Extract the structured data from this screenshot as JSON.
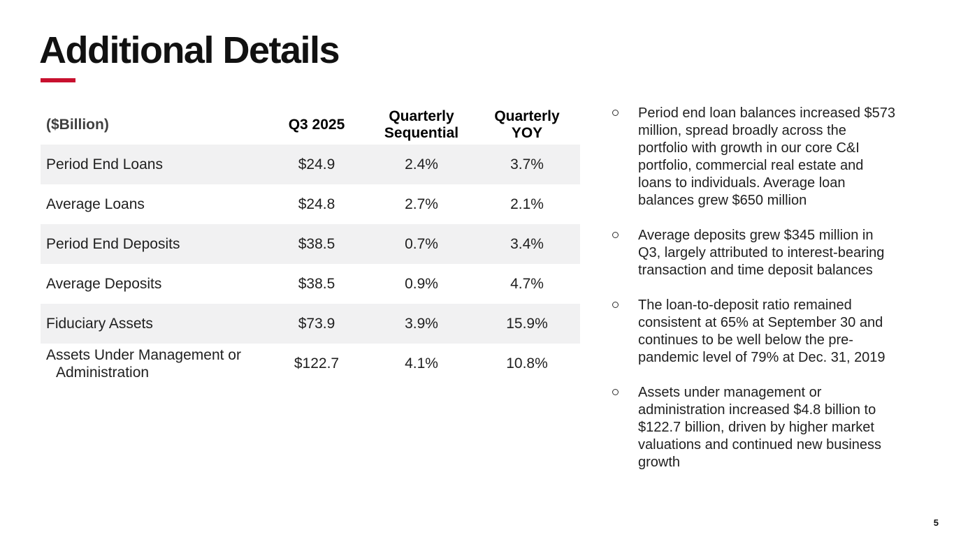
{
  "slide": {
    "title": "Additional Details",
    "page_number": "5"
  },
  "colors": {
    "accent_red": "#C8102E",
    "row_stripe": "#F1F1F2",
    "body_text": "#1F1F1F"
  },
  "table": {
    "unit_header": "($Billion)",
    "column_headers": [
      "Q3 2025",
      "Quarterly Sequential",
      "Quarterly YOY"
    ],
    "rows": [
      {
        "label": "Period End Loans",
        "q3_2025": "$24.9",
        "quarterly_sequential": "2.4%",
        "quarterly_yoy": "3.7%"
      },
      {
        "label": "Average Loans",
        "q3_2025": "$24.8",
        "quarterly_sequential": "2.7%",
        "quarterly_yoy": "2.1%"
      },
      {
        "label": "Period End Deposits",
        "q3_2025": "$38.5",
        "quarterly_sequential": "0.7%",
        "quarterly_yoy": "3.4%"
      },
      {
        "label": "Average Deposits",
        "q3_2025": "$38.5",
        "quarterly_sequential": "0.9%",
        "quarterly_yoy": "4.7%"
      },
      {
        "label": "Fiduciary Assets",
        "q3_2025": "$73.9",
        "quarterly_sequential": "3.9%",
        "quarterly_yoy": "15.9%"
      },
      {
        "label": "Assets Under Management or Administration",
        "q3_2025": "$122.7",
        "quarterly_sequential": "4.1%",
        "quarterly_yoy": "10.8%"
      }
    ]
  },
  "bullets": [
    "Period end loan balances increased $573 million, spread broadly across the portfolio with growth in our core C&I portfolio, commercial real estate and loans to individuals. Average loan balances grew $650 million",
    "Average deposits grew $345 million in Q3, largely attributed to interest-bearing transaction and time deposit balances",
    "The loan-to-deposit ratio remained consistent at 65% at September 30 and continues to be well below the pre-pandemic level of 79% at Dec. 31, 2019",
    "Assets under management or administration increased $4.8 billion to $122.7 billion, driven by higher market valuations and continued new business growth"
  ]
}
